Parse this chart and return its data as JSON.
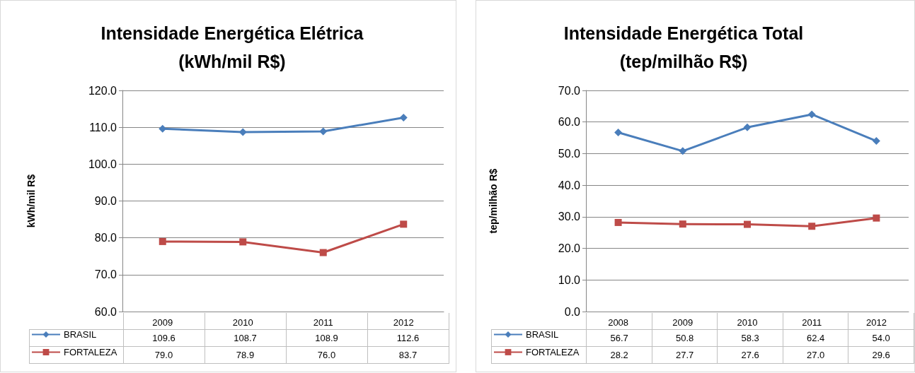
{
  "chart_data": [
    {
      "type": "line",
      "title": "Intensidade Energética Elétrica",
      "subtitle": "(kWh/mil R$)",
      "ylabel": "kWh/mil R$",
      "categories": [
        "2009",
        "2010",
        "2011",
        "2012"
      ],
      "series": [
        {
          "name": "BRASIL",
          "color": "#4a7ebb",
          "marker": "diamond",
          "values": [
            109.6,
            108.7,
            108.9,
            112.6
          ],
          "value_labels": [
            "109.6",
            "108.7",
            "108.9",
            "112.6"
          ]
        },
        {
          "name": "FORTALEZA",
          "color": "#be4b48",
          "marker": "square",
          "values": [
            79.0,
            78.9,
            76.0,
            83.7
          ],
          "value_labels": [
            "79.0",
            "78.9",
            "76.0",
            "83.7"
          ]
        }
      ],
      "ylim": [
        60,
        120
      ],
      "yticks": [
        {
          "value": 60,
          "label": "60.0"
        },
        {
          "value": 70,
          "label": "70.0"
        },
        {
          "value": 80,
          "label": "80.0"
        },
        {
          "value": 90,
          "label": "90.0"
        },
        {
          "value": 100,
          "label": "100.0"
        },
        {
          "value": 110,
          "label": "110.0"
        },
        {
          "value": 120,
          "label": "120.0"
        }
      ],
      "grid": "y",
      "legend": "bottom left"
    },
    {
      "type": "line",
      "title": "Intensidade Energética Total",
      "subtitle": "(tep/milhão R$)",
      "ylabel": "tep/milhão R$",
      "categories": [
        "2008",
        "2009",
        "2010",
        "2011",
        "2012"
      ],
      "series": [
        {
          "name": "BRASIL",
          "color": "#4a7ebb",
          "marker": "diamond",
          "values": [
            56.7,
            50.8,
            58.3,
            62.4,
            54.0
          ],
          "value_labels": [
            "56.7",
            "50.8",
            "58.3",
            "62.4",
            "54.0"
          ]
        },
        {
          "name": "FORTALEZA",
          "color": "#be4b48",
          "marker": "square",
          "values": [
            28.2,
            27.7,
            27.6,
            27.0,
            29.6
          ],
          "value_labels": [
            "28.2",
            "27.7",
            "27.6",
            "27.0",
            "29.6"
          ]
        }
      ],
      "ylim": [
        0,
        70
      ],
      "yticks": [
        {
          "value": 0,
          "label": "0.0"
        },
        {
          "value": 10,
          "label": "10.0"
        },
        {
          "value": 20,
          "label": "20.0"
        },
        {
          "value": 30,
          "label": "30.0"
        },
        {
          "value": 40,
          "label": "40.0"
        },
        {
          "value": 50,
          "label": "50.0"
        },
        {
          "value": 60,
          "label": "60.0"
        },
        {
          "value": 70,
          "label": "70.0"
        }
      ],
      "grid": "y",
      "legend": "bottom left"
    }
  ]
}
